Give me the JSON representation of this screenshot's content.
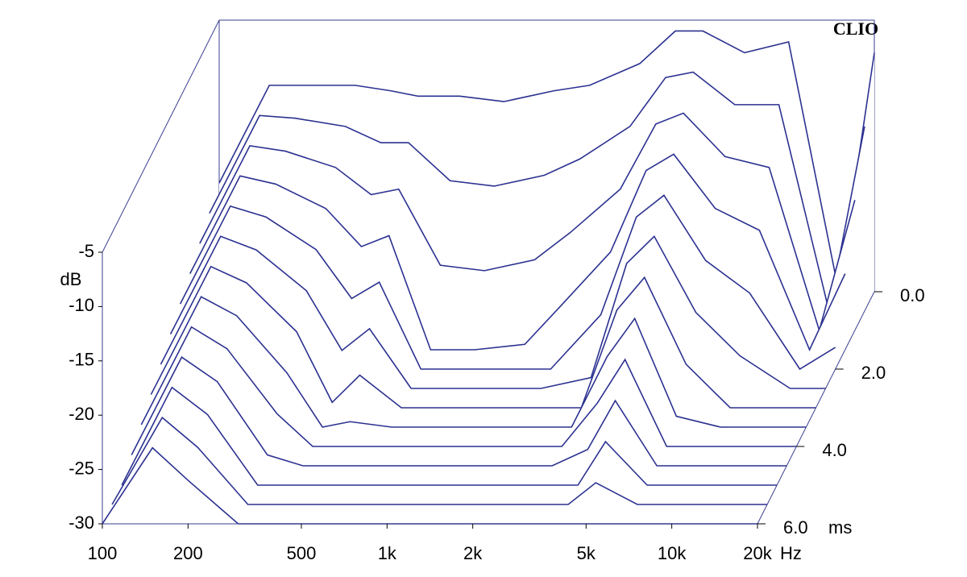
{
  "chart_data": {
    "type": "waterfall",
    "brand": "CLIO",
    "y_label": "dB",
    "x_unit": "Hz",
    "z_unit": "ms",
    "color": "#2b3190",
    "x": [
      100,
      150,
      200,
      300,
      400,
      500,
      700,
      1000,
      1500,
      2000,
      3000,
      4000,
      5000,
      7000,
      10000,
      15000,
      20000
    ],
    "times": [
      0,
      0.5,
      1,
      1.5,
      2,
      2.5,
      3,
      3.5,
      4,
      4.5,
      5,
      5.5,
      6
    ],
    "surface": [
      [
        -20,
        -11,
        -11,
        -11,
        -11.5,
        -12,
        -12,
        -12.5,
        -11.5,
        -11,
        -9,
        -6,
        -6,
        -8,
        -7,
        -30,
        -8
      ],
      [
        -21,
        -12,
        -12.25,
        -13,
        -14.5,
        -14.5,
        -18,
        -18.5,
        -17.5,
        -16,
        -13,
        -8.5,
        -8,
        -11,
        -11,
        -30,
        -13
      ],
      [
        -22,
        -13,
        -13.5,
        -15,
        -17.5,
        -17,
        -24,
        -24.5,
        -23.5,
        -21,
        -17,
        -11,
        -10,
        -14,
        -15,
        -30,
        -18
      ],
      [
        -23,
        -14,
        -14.75,
        -17,
        -20.5,
        -19.5,
        -30,
        -30,
        -29.5,
        -26,
        -21,
        -13.5,
        -12,
        -17,
        -19,
        -30,
        -23
      ],
      [
        -24,
        -15,
        -16,
        -19,
        -23.5,
        -22,
        -30,
        -30,
        -30,
        -30,
        -25,
        -16,
        -14,
        -20,
        -23,
        -30,
        -28
      ],
      [
        -25,
        -16,
        -17.25,
        -21,
        -26.5,
        -24.5,
        -30,
        -30,
        -30,
        -30,
        -29,
        -18.5,
        -16,
        -23,
        -27,
        -30,
        -30
      ],
      [
        -26,
        -17,
        -18.5,
        -23,
        -29.5,
        -27,
        -30,
        -30,
        -30,
        -30,
        -30,
        -21,
        -18,
        -26,
        -30,
        -30,
        -30
      ],
      [
        -27,
        -18,
        -19.75,
        -25,
        -30,
        -29.5,
        -30,
        -30,
        -30,
        -30,
        -30,
        -23.5,
        -20,
        -29,
        -30,
        -30,
        -30
      ],
      [
        -28,
        -19,
        -21,
        -27,
        -30,
        -30,
        -30,
        -30,
        -30,
        -30,
        -30,
        -26,
        -22,
        -30,
        -30,
        -30,
        -30
      ],
      [
        -29,
        -20,
        -22.25,
        -29,
        -30,
        -30,
        -30,
        -30,
        -30,
        -30,
        -30,
        -28.5,
        -24,
        -30,
        -30,
        -30,
        -30
      ],
      [
        -30,
        -21,
        -23.5,
        -30,
        -30,
        -30,
        -30,
        -30,
        -30,
        -30,
        -30,
        -30,
        -26,
        -30,
        -30,
        -30,
        -30
      ],
      [
        -30,
        -22,
        -24.75,
        -30,
        -30,
        -30,
        -30,
        -30,
        -30,
        -30,
        -30,
        -30,
        -28,
        -30,
        -30,
        -30,
        -30
      ],
      [
        -30,
        -23,
        -26,
        -30,
        -30,
        -30,
        -30,
        -30,
        -30,
        -30,
        -30,
        -30,
        -30,
        -30,
        -30,
        -30,
        -30
      ]
    ],
    "xlim": [
      100,
      20000
    ],
    "xticks": [
      100,
      200,
      500,
      {
        "value": 1000,
        "label": "1k"
      },
      {
        "value": 2000,
        "label": "2k"
      },
      {
        "value": 5000,
        "label": "5k"
      },
      {
        "value": 10000,
        "label": "10k"
      },
      {
        "value": 20000,
        "label": "20k"
      }
    ],
    "log_x": true,
    "ylim": [
      -30,
      -5
    ],
    "yticks": [
      -5,
      -10,
      -15,
      -20,
      -25,
      -30
    ],
    "zlim": [
      0,
      6
    ],
    "zticks": [
      {
        "value": 0,
        "label": "0.0"
      },
      {
        "value": 2,
        "label": "2.0"
      },
      {
        "value": 4,
        "label": "4.0"
      },
      {
        "value": 6,
        "label": "6.0"
      }
    ]
  }
}
